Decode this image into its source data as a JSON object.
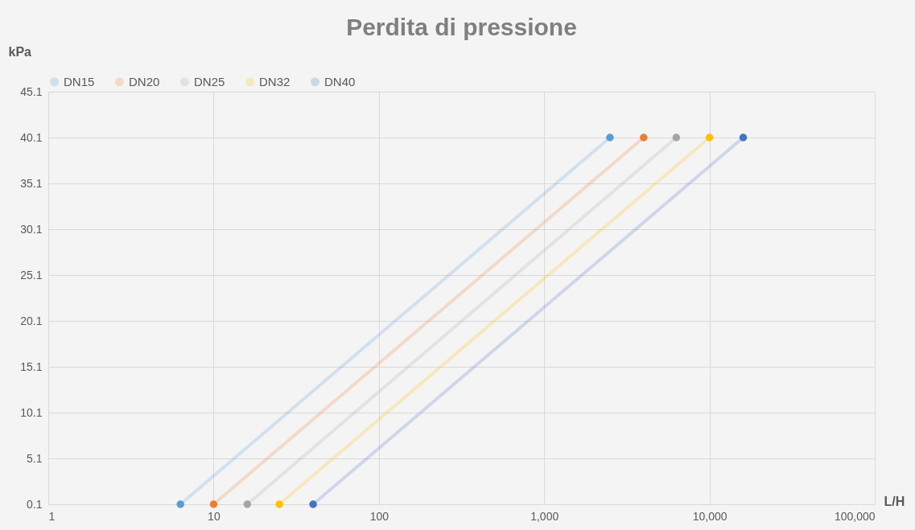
{
  "chart_data": {
    "type": "line",
    "title": "Perdita di pressione",
    "xlabel": "L/H",
    "ylabel": "kPa",
    "log": "x",
    "xlim": [
      1,
      100000
    ],
    "xticks": [
      1,
      10,
      100,
      {
        "value": 1000,
        "label": "1,000"
      },
      {
        "value": 10000,
        "label": "10,000"
      },
      {
        "value": 100000,
        "label": "100,000"
      }
    ],
    "ylim": [
      0.1,
      45.1
    ],
    "yticks": [
      0.1,
      5.1,
      10.1,
      15.1,
      20.1,
      25.1,
      30.1,
      35.1,
      40.1,
      45.1
    ],
    "grid": true,
    "legend": "top",
    "marker": "circle",
    "line_style": "solid",
    "series": [
      {
        "name": "DN15",
        "color": "#5b9bd5",
        "x": [
          6.3,
          2500
        ],
        "values": [
          0.1,
          40.1
        ]
      },
      {
        "name": "DN20",
        "color": "#ed7d31",
        "x": [
          10,
          4000
        ],
        "values": [
          0.1,
          40.1
        ]
      },
      {
        "name": "DN25",
        "color": "#a5a5a5",
        "x": [
          16,
          6300
        ],
        "values": [
          0.1,
          40.1
        ]
      },
      {
        "name": "DN32",
        "color": "#ffc000",
        "x": [
          25,
          10000
        ],
        "values": [
          0.1,
          40.1
        ]
      },
      {
        "name": "DN40",
        "color": "#4472c4",
        "x": [
          40,
          16000
        ],
        "values": [
          0.1,
          40.1
        ]
      }
    ]
  }
}
